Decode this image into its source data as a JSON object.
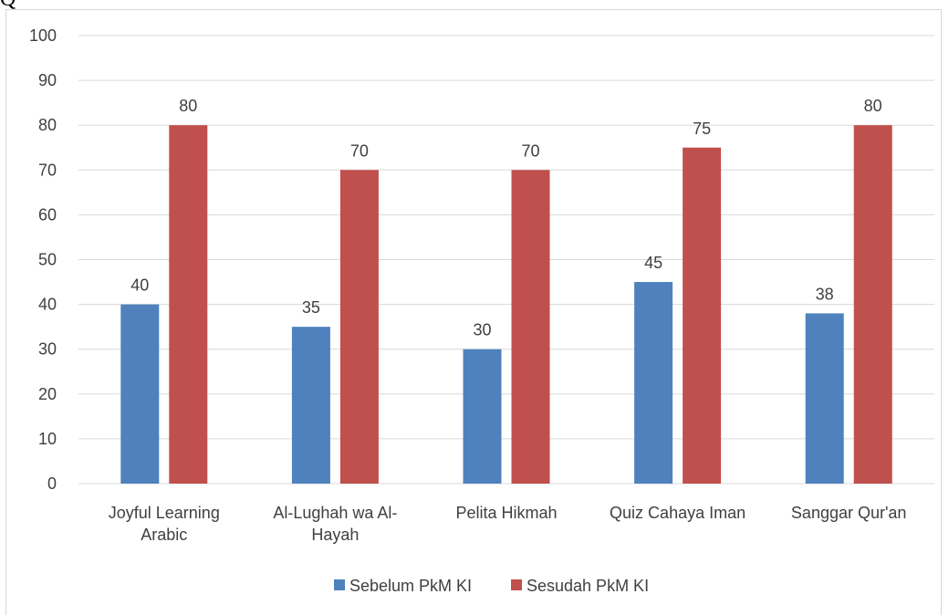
{
  "caption": "Q",
  "chart_data": {
    "type": "bar",
    "title": "",
    "xlabel": "",
    "ylabel": "",
    "ylim": [
      0,
      100
    ],
    "yticks": [
      0,
      10,
      20,
      30,
      40,
      50,
      60,
      70,
      80,
      90,
      100
    ],
    "grid": true,
    "legend_position": "bottom",
    "categories": [
      [
        "Joyful Learning",
        "Arabic"
      ],
      [
        "Al-Lughah wa Al-",
        "Hayah"
      ],
      [
        "Pelita Hikmah"
      ],
      [
        "Quiz Cahaya Iman"
      ],
      [
        "Sanggar Qur'an"
      ]
    ],
    "series": [
      {
        "name": "Sebelum PkM KI",
        "color": "#4f81bd",
        "values": [
          40,
          35,
          30,
          45,
          38
        ]
      },
      {
        "name": "Sesudah PkM KI",
        "color": "#c0504d",
        "values": [
          80,
          70,
          70,
          75,
          80
        ]
      }
    ]
  }
}
